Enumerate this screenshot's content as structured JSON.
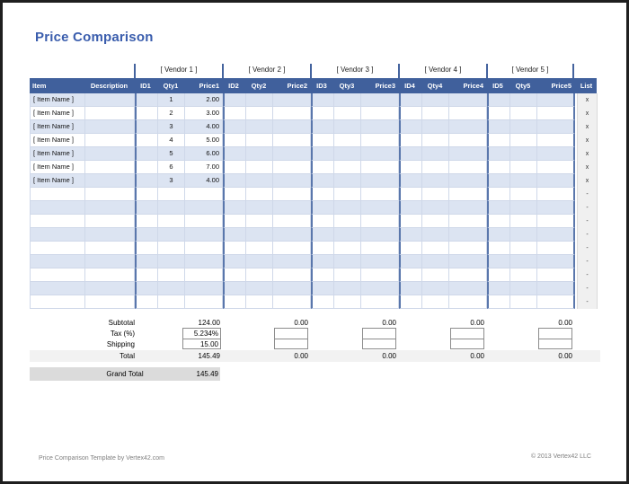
{
  "title": "Price Comparison",
  "vendors": [
    "[ Vendor 1 ]",
    "[ Vendor 2 ]",
    "[ Vendor 3 ]",
    "[ Vendor 4 ]",
    "[ Vendor 5 ]"
  ],
  "columns": {
    "item": "Item",
    "description": "Description",
    "vendor_cols": [
      [
        "ID1",
        "Qty1",
        "Price1"
      ],
      [
        "ID2",
        "Qty2",
        "Price2"
      ],
      [
        "ID3",
        "Qty3",
        "Price3"
      ],
      [
        "ID4",
        "Qty4",
        "Price4"
      ],
      [
        "ID5",
        "Qty5",
        "Price5"
      ]
    ],
    "list": "List"
  },
  "rows": [
    {
      "item": "[ Item Name ]",
      "qty1": "1",
      "price1": "2.00",
      "list": "x"
    },
    {
      "item": "[ Item Name ]",
      "qty1": "2",
      "price1": "3.00",
      "list": "x"
    },
    {
      "item": "[ Item Name ]",
      "qty1": "3",
      "price1": "4.00",
      "list": "x"
    },
    {
      "item": "[ Item Name ]",
      "qty1": "4",
      "price1": "5.00",
      "list": "x"
    },
    {
      "item": "[ Item Name ]",
      "qty1": "5",
      "price1": "6.00",
      "list": "x"
    },
    {
      "item": "[ Item Name ]",
      "qty1": "6",
      "price1": "7.00",
      "list": "x"
    },
    {
      "item": "[ Item Name ]",
      "qty1": "3",
      "price1": "4.00",
      "list": "x"
    },
    {
      "list": "-"
    },
    {
      "list": "-"
    },
    {
      "list": "-"
    },
    {
      "list": "-"
    },
    {
      "list": "-"
    },
    {
      "list": "-"
    },
    {
      "list": "-"
    },
    {
      "list": "-"
    },
    {
      "list": "-"
    }
  ],
  "totals": {
    "subtotal_label": "Subtotal",
    "tax_label": "Tax (%)",
    "shipping_label": "Shipping",
    "total_label": "Total",
    "grand_total_label": "Grand Total",
    "vendor1": {
      "subtotal": "124.00",
      "tax": "5.234%",
      "shipping": "15.00",
      "total": "145.49"
    },
    "vendors2to5": [
      {
        "subtotal": "0.00",
        "tax": "",
        "shipping": "",
        "total": "0.00"
      },
      {
        "subtotal": "0.00",
        "tax": "",
        "shipping": "",
        "total": "0.00"
      },
      {
        "subtotal": "0.00",
        "tax": "",
        "shipping": "",
        "total": "0.00"
      },
      {
        "subtotal": "0.00",
        "tax": "",
        "shipping": "",
        "total": "0.00"
      }
    ],
    "grand_total": "145.49"
  },
  "footer": {
    "left": "Price Comparison Template by Vertex42.com",
    "right": "© 2013 Vertex42 LLC"
  },
  "colors": {
    "frame": "#1F1F1F",
    "title_color": "#3A5DAD",
    "header_bg": "#40609C",
    "header_text": "#FFFFFF",
    "row_alt": "#DCE4F2",
    "grid_line": "#CFD8E9",
    "group_sep": "#5A77AC",
    "tick": "#44639E",
    "list_bg": "#F0F0F0",
    "list_border": "#DADADA",
    "total_band": "#F2F2F2",
    "grand_band": "#DBDBDB",
    "box_border": "#8C8C8C",
    "footer_text": "#808080"
  }
}
